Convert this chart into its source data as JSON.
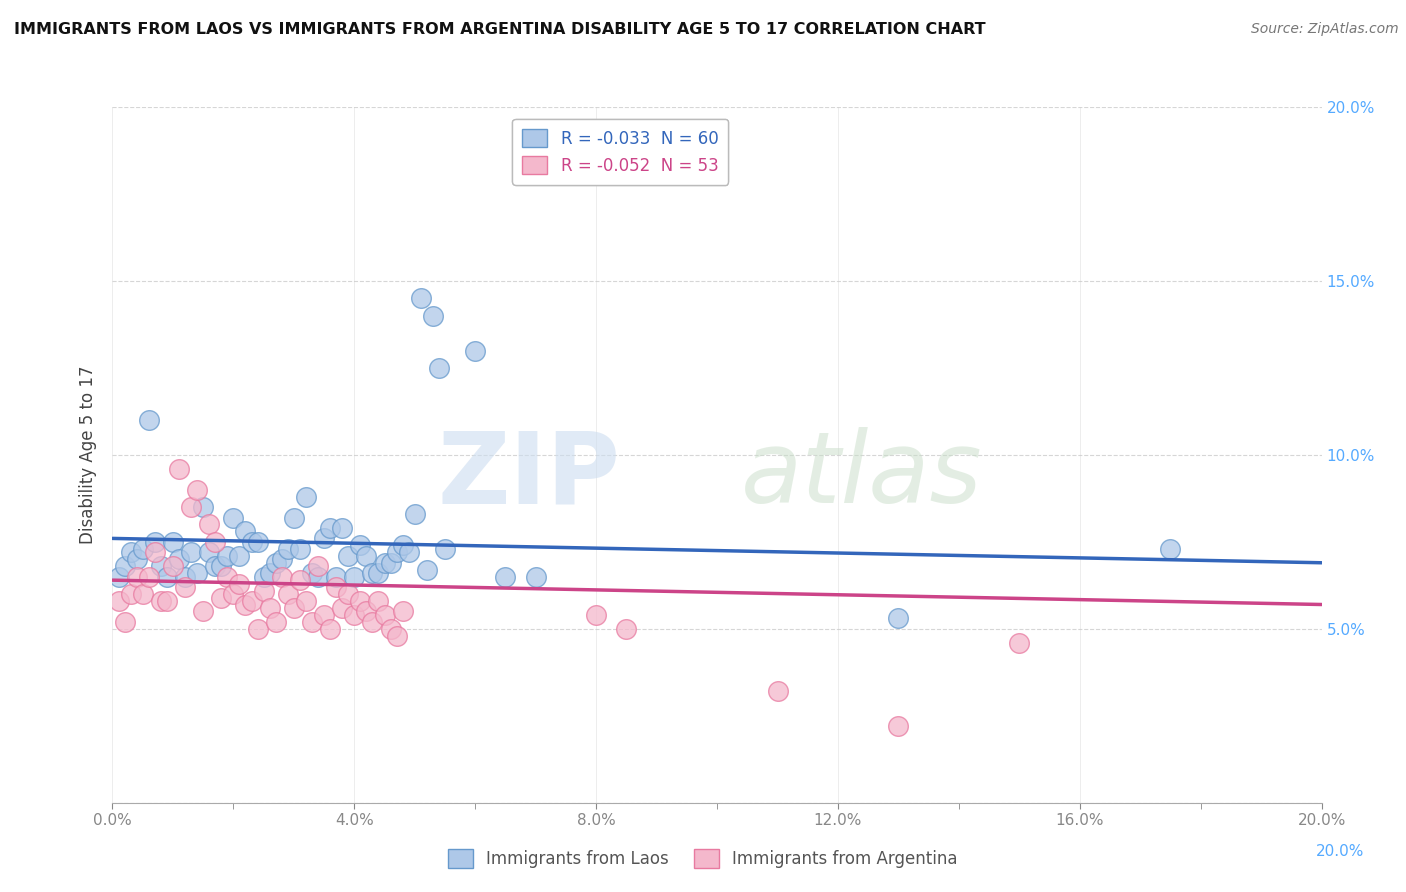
{
  "title": "IMMIGRANTS FROM LAOS VS IMMIGRANTS FROM ARGENTINA DISABILITY AGE 5 TO 17 CORRELATION CHART",
  "source": "Source: ZipAtlas.com",
  "ylabel": "Disability Age 5 to 17",
  "x_min": 0.0,
  "x_max": 0.2,
  "y_min": 0.0,
  "y_max": 0.2,
  "x_tick_vals": [
    0.0,
    0.02,
    0.04,
    0.06,
    0.08,
    0.1,
    0.12,
    0.14,
    0.16,
    0.18,
    0.2
  ],
  "x_tick_labels": [
    "0.0%",
    "",
    "",
    "",
    "",
    "",
    "",
    "",
    "",
    "",
    "20.0%"
  ],
  "x_major_tick_vals": [
    0.0,
    0.04,
    0.08,
    0.12,
    0.16,
    0.2
  ],
  "x_major_tick_labels": [
    "0.0%",
    "4.0%",
    "8.0%",
    "12.0%",
    "16.0%",
    "20.0%"
  ],
  "y_tick_vals": [
    0.0,
    0.05,
    0.1,
    0.15,
    0.2
  ],
  "y_tick_labels_right": [
    "",
    "5.0%",
    "10.0%",
    "15.0%",
    "20.0%"
  ],
  "legend_blue_label": "R = -0.033  N = 60",
  "legend_pink_label": "R = -0.052  N = 53",
  "legend_bottom_blue": "Immigrants from Laos",
  "legend_bottom_pink": "Immigrants from Argentina",
  "blue_color": "#aec8e8",
  "pink_color": "#f4b8cc",
  "blue_edge_color": "#6699cc",
  "pink_edge_color": "#e87aa0",
  "trendline_blue_color": "#3366bb",
  "trendline_pink_color": "#cc4488",
  "grid_color": "#cccccc",
  "blue_scatter_x": [
    0.001,
    0.002,
    0.003,
    0.004,
    0.005,
    0.006,
    0.007,
    0.008,
    0.009,
    0.01,
    0.011,
    0.012,
    0.013,
    0.014,
    0.015,
    0.016,
    0.017,
    0.018,
    0.019,
    0.02,
    0.021,
    0.022,
    0.023,
    0.024,
    0.025,
    0.026,
    0.027,
    0.028,
    0.029,
    0.03,
    0.031,
    0.032,
    0.033,
    0.034,
    0.035,
    0.036,
    0.037,
    0.038,
    0.039,
    0.04,
    0.041,
    0.042,
    0.043,
    0.044,
    0.045,
    0.046,
    0.047,
    0.048,
    0.049,
    0.05,
    0.051,
    0.052,
    0.053,
    0.054,
    0.055,
    0.06,
    0.065,
    0.07,
    0.13,
    0.175
  ],
  "blue_scatter_y": [
    0.065,
    0.068,
    0.072,
    0.07,
    0.073,
    0.11,
    0.075,
    0.068,
    0.065,
    0.075,
    0.07,
    0.065,
    0.072,
    0.066,
    0.085,
    0.072,
    0.068,
    0.068,
    0.071,
    0.082,
    0.071,
    0.078,
    0.075,
    0.075,
    0.065,
    0.066,
    0.069,
    0.07,
    0.073,
    0.082,
    0.073,
    0.088,
    0.066,
    0.065,
    0.076,
    0.079,
    0.065,
    0.079,
    0.071,
    0.065,
    0.074,
    0.071,
    0.066,
    0.066,
    0.069,
    0.069,
    0.072,
    0.074,
    0.072,
    0.083,
    0.145,
    0.067,
    0.14,
    0.125,
    0.073,
    0.13,
    0.065,
    0.065,
    0.053,
    0.073
  ],
  "pink_scatter_x": [
    0.001,
    0.002,
    0.003,
    0.004,
    0.005,
    0.006,
    0.007,
    0.008,
    0.009,
    0.01,
    0.011,
    0.012,
    0.013,
    0.014,
    0.015,
    0.016,
    0.017,
    0.018,
    0.019,
    0.02,
    0.021,
    0.022,
    0.023,
    0.024,
    0.025,
    0.026,
    0.027,
    0.028,
    0.029,
    0.03,
    0.031,
    0.032,
    0.033,
    0.034,
    0.035,
    0.036,
    0.037,
    0.038,
    0.039,
    0.04,
    0.041,
    0.042,
    0.043,
    0.044,
    0.045,
    0.046,
    0.047,
    0.048,
    0.08,
    0.085,
    0.11,
    0.13,
    0.15
  ],
  "pink_scatter_y": [
    0.058,
    0.052,
    0.06,
    0.065,
    0.06,
    0.065,
    0.072,
    0.058,
    0.058,
    0.068,
    0.096,
    0.062,
    0.085,
    0.09,
    0.055,
    0.08,
    0.075,
    0.059,
    0.065,
    0.06,
    0.063,
    0.057,
    0.058,
    0.05,
    0.061,
    0.056,
    0.052,
    0.065,
    0.06,
    0.056,
    0.064,
    0.058,
    0.052,
    0.068,
    0.054,
    0.05,
    0.062,
    0.056,
    0.06,
    0.054,
    0.058,
    0.055,
    0.052,
    0.058,
    0.054,
    0.05,
    0.048,
    0.055,
    0.054,
    0.05,
    0.032,
    0.022,
    0.046
  ],
  "blue_trend_x": [
    0.0,
    0.2
  ],
  "blue_trend_y": [
    0.076,
    0.069
  ],
  "pink_trend_x": [
    0.0,
    0.2
  ],
  "pink_trend_y": [
    0.064,
    0.057
  ]
}
